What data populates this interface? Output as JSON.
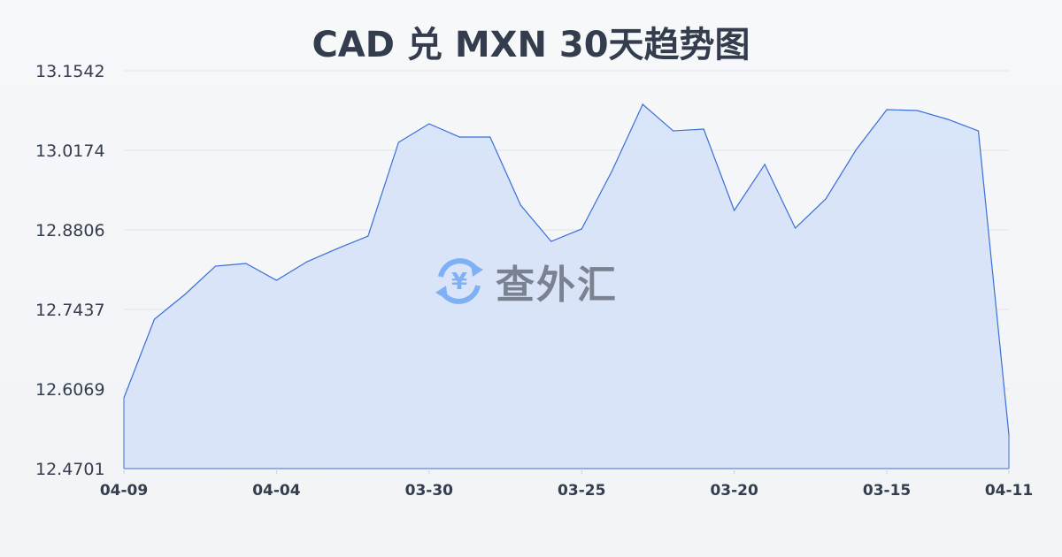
{
  "chart_data": {
    "type": "area",
    "title": "CAD 兑 MXN 30天趋势图",
    "xlabel": "",
    "ylabel": "",
    "ylim": [
      12.4701,
      13.1542
    ],
    "y_ticks": [
      "13.1542",
      "13.0174",
      "12.8806",
      "12.7437",
      "12.6069",
      "12.4701"
    ],
    "x_ticks": [
      {
        "label": "04-09",
        "index": 0
      },
      {
        "label": "04-04",
        "index": 5
      },
      {
        "label": "03-30",
        "index": 10
      },
      {
        "label": "03-25",
        "index": 15
      },
      {
        "label": "03-20",
        "index": 20
      },
      {
        "label": "03-15",
        "index": 25
      },
      {
        "label": "04-11",
        "index": 29
      }
    ],
    "values": [
      12.5917,
      12.727,
      12.7696,
      12.8182,
      12.8228,
      12.7939,
      12.8258,
      12.8486,
      12.8699,
      13.0311,
      13.063,
      13.0402,
      13.0402,
      12.9231,
      12.8608,
      12.8821,
      12.9824,
      13.0964,
      13.0508,
      13.0539,
      12.914,
      12.9931,
      12.8836,
      12.9338,
      13.0189,
      13.0873,
      13.0858,
      13.0706,
      13.0508,
      12.5279
    ],
    "grid": true,
    "line_color": "#3a6fd8",
    "fill_color": "#d6e2f7"
  },
  "watermark": {
    "text": "查外汇",
    "icon": "yen-exchange-icon",
    "icon_color": "#7fb0f5"
  }
}
